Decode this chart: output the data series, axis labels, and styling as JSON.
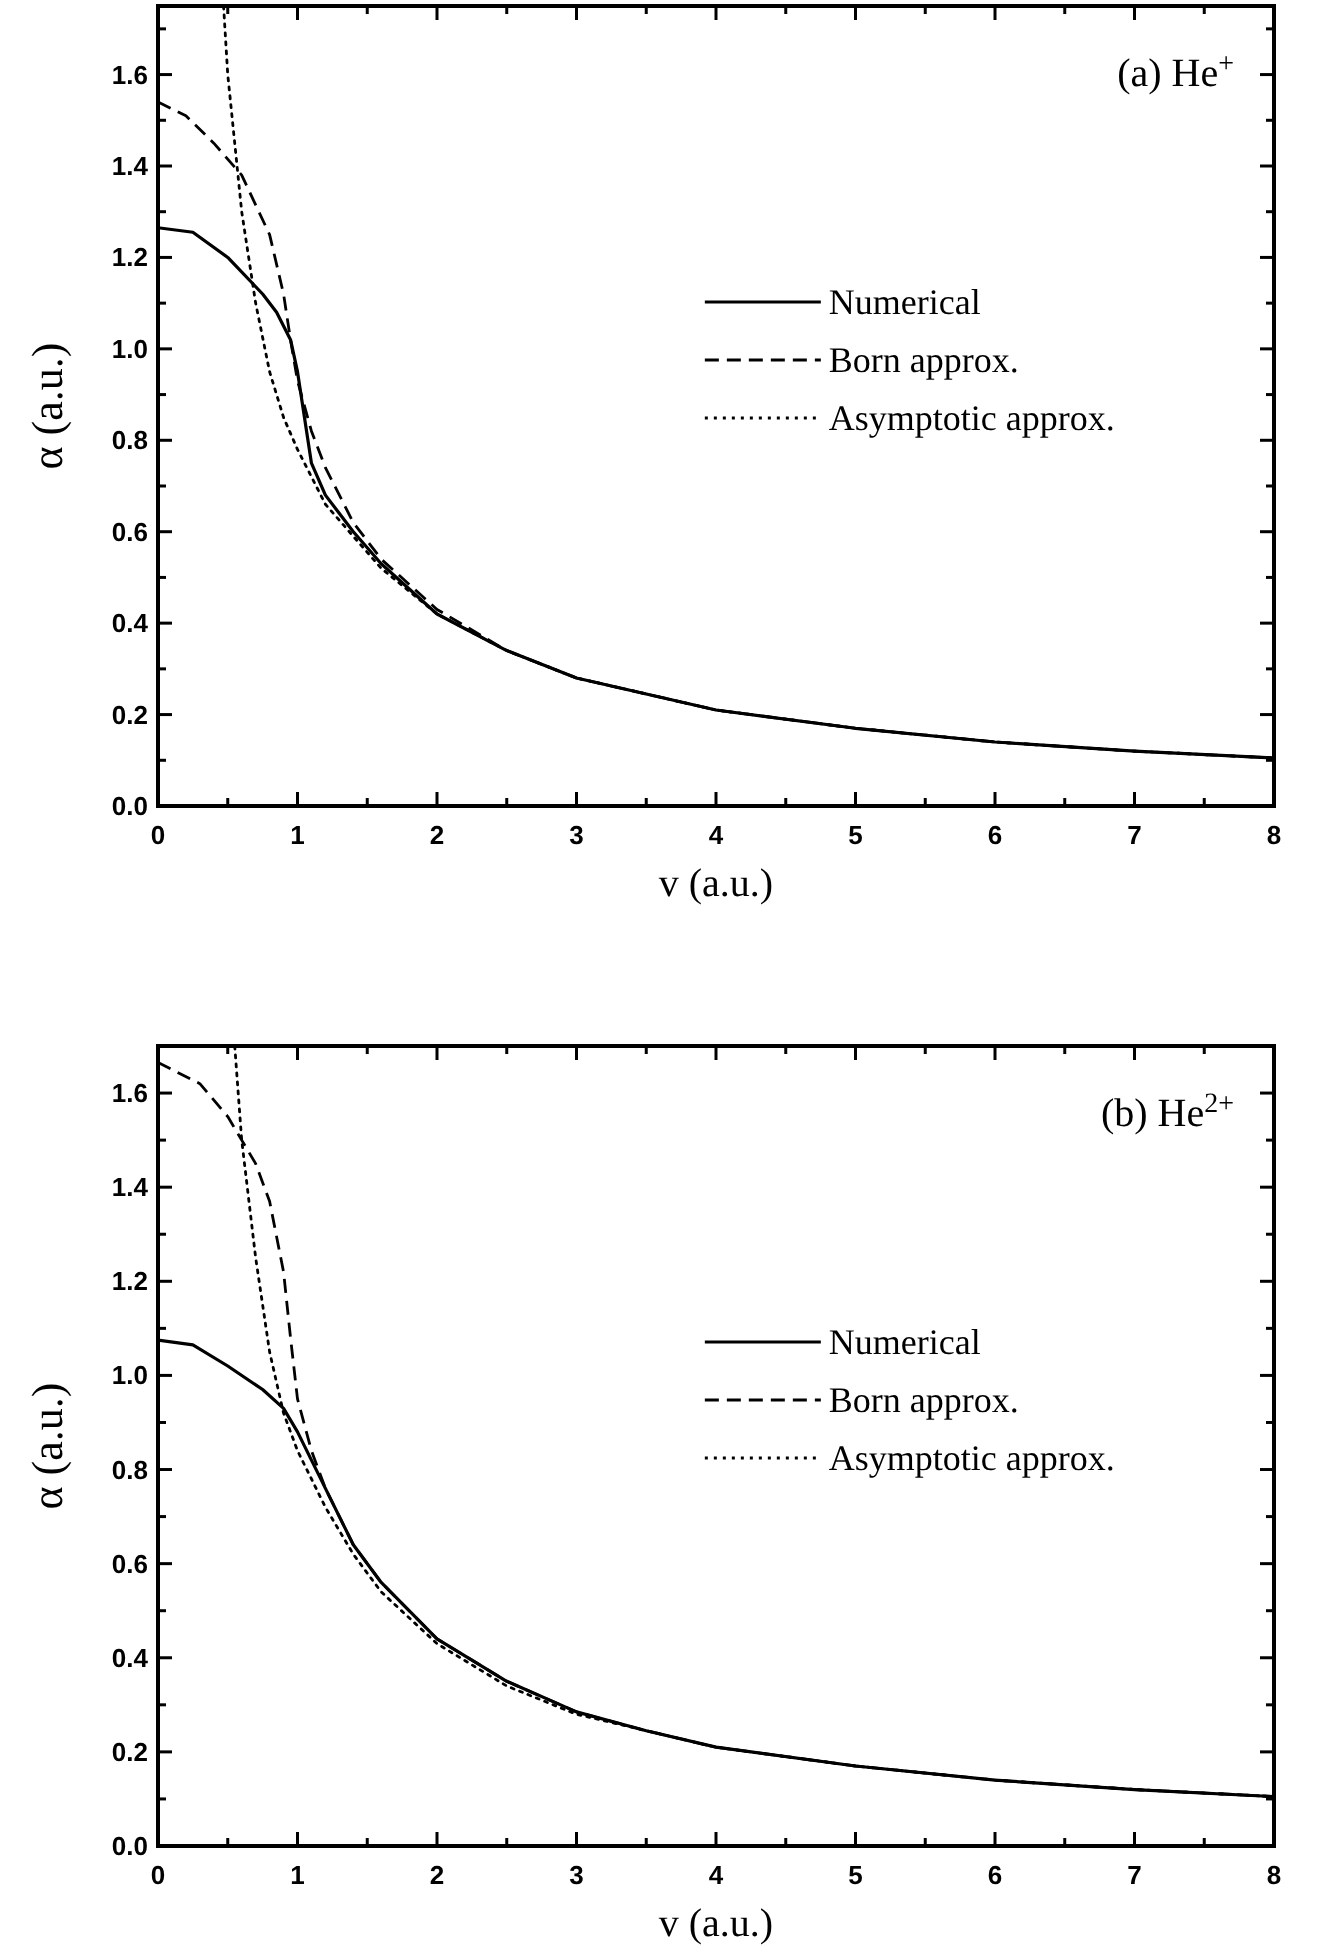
{
  "chart_data": [
    {
      "type": "line",
      "xlabel": "v (a.u.)",
      "ylabel": "α (a.u.)",
      "annotations": [
        "(a) He$^{+}$"
      ],
      "xlim": [
        0,
        8
      ],
      "ylim": [
        0,
        1.75
      ],
      "xticks": [
        0,
        {
          "value": 0.5,
          "label": null
        },
        1,
        {
          "value": 1.5,
          "label": null
        },
        2,
        {
          "value": 2.5,
          "label": null
        },
        3,
        {
          "value": 3.5,
          "label": null
        },
        4,
        {
          "value": 4.5,
          "label": null
        },
        5,
        {
          "value": 5.5,
          "label": null
        },
        6,
        {
          "value": 6.5,
          "label": null
        },
        7,
        {
          "value": 7.5,
          "label": null
        },
        8
      ],
      "yticks": [
        {
          "value": 0,
          "label": "0.0"
        },
        {
          "value": 0.1,
          "label": null
        },
        0.2,
        {
          "value": 0.3,
          "label": null
        },
        0.4,
        {
          "value": 0.5,
          "label": null
        },
        0.6,
        {
          "value": 0.7,
          "label": null
        },
        0.8,
        {
          "value": 0.9,
          "label": null
        },
        {
          "value": 1.0,
          "label": "1.0"
        },
        {
          "value": 1.1,
          "label": null
        },
        1.2,
        {
          "value": 1.3,
          "label": null
        },
        1.4,
        {
          "value": 1.5,
          "label": null
        },
        1.6,
        {
          "value": 1.7,
          "label": null
        }
      ],
      "legend": "right",
      "marker": "none",
      "grid": false,
      "series": [
        {
          "name": "Numerical",
          "color": "#000000",
          "line_style": "solid",
          "x": [
            0,
            0.25,
            0.5,
            0.75,
            0.85,
            0.95,
            1.0,
            1.05,
            1.1,
            1.2,
            1.4,
            1.6,
            2,
            2.5,
            3,
            3.5,
            4,
            5,
            6,
            7,
            8
          ],
          "values": [
            1.265,
            1.255,
            1.2,
            1.12,
            1.08,
            1.02,
            0.95,
            0.85,
            0.75,
            0.68,
            0.6,
            0.53,
            0.42,
            0.34,
            0.28,
            0.245,
            0.21,
            0.17,
            0.14,
            0.12,
            0.105
          ]
        },
        {
          "name": "Born approx.",
          "color": "#000000",
          "line_style": "dashed",
          "x": [
            0,
            0.2,
            0.4,
            0.6,
            0.8,
            0.9,
            0.95,
            1.0,
            1.1,
            1.2,
            1.4,
            1.6,
            2,
            2.5,
            3,
            3.5,
            4,
            5,
            6,
            7,
            8
          ],
          "values": [
            1.54,
            1.51,
            1.45,
            1.38,
            1.25,
            1.12,
            1.02,
            0.93,
            0.82,
            0.74,
            0.62,
            0.54,
            0.43,
            0.34,
            0.28,
            0.245,
            0.21,
            0.17,
            0.14,
            0.12,
            0.105
          ]
        },
        {
          "name": "Asymptotic approx.",
          "color": "#000000",
          "line_style": "dotted",
          "x": [
            0.47,
            0.5,
            0.55,
            0.6,
            0.7,
            0.8,
            0.9,
            1.0,
            1.1,
            1.2,
            1.4,
            1.6,
            2,
            2.5,
            3,
            3.5,
            4,
            5,
            6,
            7,
            8
          ],
          "values": [
            1.75,
            1.6,
            1.45,
            1.3,
            1.1,
            0.95,
            0.85,
            0.78,
            0.72,
            0.66,
            0.59,
            0.52,
            0.42,
            0.34,
            0.28,
            0.245,
            0.21,
            0.17,
            0.14,
            0.12,
            0.105
          ]
        }
      ]
    },
    {
      "type": "line",
      "xlabel": "v (a.u.)",
      "ylabel": "α (a.u.)",
      "annotations": [
        "(b) He$^{2+}$"
      ],
      "xlim": [
        0,
        8
      ],
      "ylim": [
        0,
        1.7
      ],
      "xticks": [
        0,
        {
          "value": 0.5,
          "label": null
        },
        1,
        {
          "value": 1.5,
          "label": null
        },
        2,
        {
          "value": 2.5,
          "label": null
        },
        3,
        {
          "value": 3.5,
          "label": null
        },
        4,
        {
          "value": 4.5,
          "label": null
        },
        5,
        {
          "value": 5.5,
          "label": null
        },
        6,
        {
          "value": 6.5,
          "label": null
        },
        7,
        {
          "value": 7.5,
          "label": null
        },
        8
      ],
      "yticks": [
        {
          "value": 0,
          "label": "0.0"
        },
        {
          "value": 0.1,
          "label": null
        },
        0.2,
        {
          "value": 0.3,
          "label": null
        },
        0.4,
        {
          "value": 0.5,
          "label": null
        },
        0.6,
        {
          "value": 0.7,
          "label": null
        },
        0.8,
        {
          "value": 0.9,
          "label": null
        },
        {
          "value": 1.0,
          "label": "1.0"
        },
        {
          "value": 1.1,
          "label": null
        },
        1.2,
        {
          "value": 1.3,
          "label": null
        },
        1.4,
        {
          "value": 1.5,
          "label": null
        },
        1.6
      ],
      "legend": "right",
      "marker": "none",
      "grid": false,
      "series": [
        {
          "name": "Numerical",
          "color": "#000000",
          "line_style": "solid",
          "x": [
            0,
            0.25,
            0.5,
            0.75,
            0.9,
            1.0,
            1.1,
            1.2,
            1.4,
            1.6,
            2,
            2.5,
            3,
            3.5,
            4,
            5,
            6,
            7,
            8
          ],
          "values": [
            1.075,
            1.065,
            1.02,
            0.97,
            0.93,
            0.88,
            0.82,
            0.76,
            0.64,
            0.56,
            0.44,
            0.35,
            0.285,
            0.245,
            0.21,
            0.17,
            0.14,
            0.12,
            0.105
          ]
        },
        {
          "name": "Born approx.",
          "color": "#000000",
          "line_style": "dashed",
          "x": [
            0,
            0.3,
            0.5,
            0.6,
            0.7,
            0.8,
            0.9,
            0.95,
            1.0,
            1.1,
            1.2,
            1.4,
            1.6,
            2,
            2.5,
            3,
            3.5,
            4,
            5,
            6,
            7,
            8
          ],
          "values": [
            1.665,
            1.62,
            1.55,
            1.5,
            1.45,
            1.37,
            1.22,
            1.08,
            0.95,
            0.84,
            0.76,
            0.64,
            0.56,
            0.44,
            0.35,
            0.285,
            0.245,
            0.21,
            0.17,
            0.14,
            0.12,
            0.105
          ]
        },
        {
          "name": "Asymptotic approx.",
          "color": "#000000",
          "line_style": "dotted",
          "x": [
            0.55,
            0.6,
            0.7,
            0.8,
            0.9,
            1.0,
            1.2,
            1.4,
            1.6,
            2,
            2.5,
            3,
            3.5,
            4,
            5,
            6,
            7,
            8
          ],
          "values": [
            1.7,
            1.5,
            1.25,
            1.05,
            0.92,
            0.84,
            0.72,
            0.62,
            0.54,
            0.43,
            0.34,
            0.28,
            0.245,
            0.21,
            0.17,
            0.14,
            0.12,
            0.105
          ]
        }
      ]
    }
  ]
}
